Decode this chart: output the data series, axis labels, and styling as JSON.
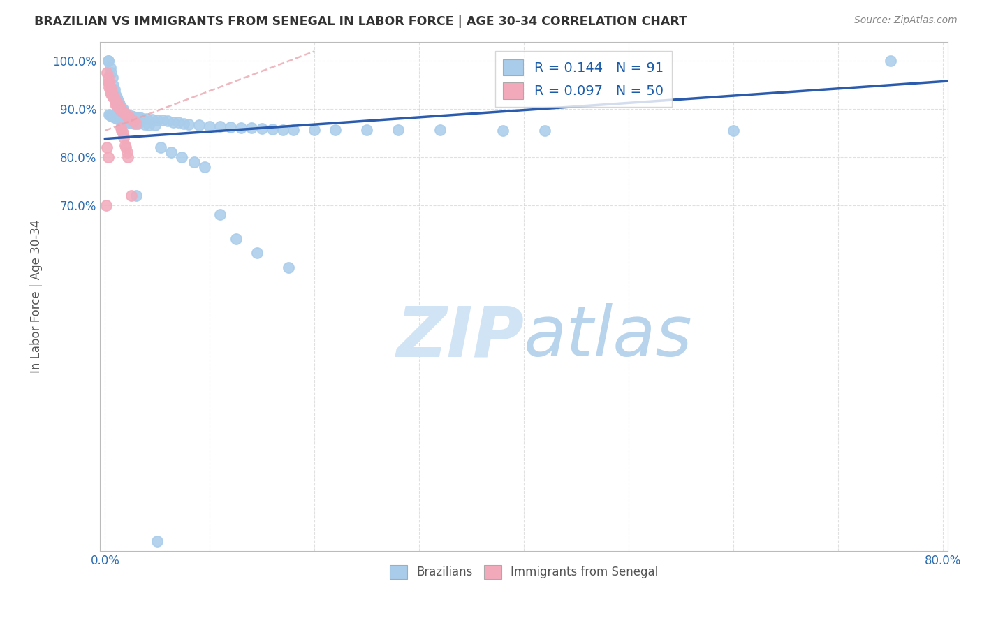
{
  "title": "BRAZILIAN VS IMMIGRANTS FROM SENEGAL IN LABOR FORCE | AGE 30-34 CORRELATION CHART",
  "source": "Source: ZipAtlas.com",
  "ylabel": "In Labor Force | Age 30-34",
  "xlim": [
    -0.005,
    0.805
  ],
  "ylim": [
    -0.02,
    1.04
  ],
  "yticks": [
    0.7,
    0.8,
    0.9,
    1.0
  ],
  "ytick_labels": [
    "70.0%",
    "80.0%",
    "90.0%",
    "100.0%"
  ],
  "xticks": [
    0.0,
    0.1,
    0.2,
    0.3,
    0.4,
    0.5,
    0.6,
    0.7,
    0.8
  ],
  "xtick_labels": [
    "0.0%",
    "",
    "",
    "",
    "",
    "",
    "",
    "",
    "80.0%"
  ],
  "blue_R": 0.144,
  "blue_N": 91,
  "pink_R": 0.097,
  "pink_N": 50,
  "blue_color": "#A8CCEA",
  "pink_color": "#F2AABB",
  "trendline_blue_color": "#2B5BAD",
  "trendline_pink_color": "#E8A0AA",
  "grid_color": "#CCCCCC",
  "title_color": "#333333",
  "axis_label_color": "#555555",
  "legend_text_color": "#1A5CA8",
  "watermark_color": "#D0E8F8",
  "background_color": "#FFFFFF",
  "blue_trendline_x": [
    0.0,
    0.805
  ],
  "blue_trendline_y": [
    0.838,
    0.958
  ],
  "pink_trendline_x": [
    0.0,
    0.2
  ],
  "pink_trendline_y": [
    0.855,
    1.02
  ],
  "blue_x": [
    0.003,
    0.003,
    0.005,
    0.006,
    0.007,
    0.008,
    0.009,
    0.01,
    0.011,
    0.012,
    0.013,
    0.014,
    0.015,
    0.016,
    0.017,
    0.018,
    0.019,
    0.02,
    0.021,
    0.022,
    0.023,
    0.025,
    0.027,
    0.03,
    0.033,
    0.036,
    0.04,
    0.045,
    0.05,
    0.055,
    0.06,
    0.065,
    0.07,
    0.075,
    0.08,
    0.09,
    0.1,
    0.11,
    0.12,
    0.13,
    0.14,
    0.15,
    0.16,
    0.17,
    0.18,
    0.2,
    0.22,
    0.25,
    0.28,
    0.32,
    0.38,
    0.42,
    0.6,
    0.75,
    0.004,
    0.005,
    0.006,
    0.007,
    0.008,
    0.009,
    0.01,
    0.011,
    0.012,
    0.013,
    0.014,
    0.015,
    0.016,
    0.017,
    0.018,
    0.019,
    0.02,
    0.021,
    0.022,
    0.023,
    0.025,
    0.028,
    0.032,
    0.038,
    0.042,
    0.048,
    0.053,
    0.063,
    0.073,
    0.085,
    0.095,
    0.11,
    0.125,
    0.145,
    0.175,
    0.03,
    0.05
  ],
  "blue_y": [
    1.0,
    1.0,
    0.985,
    0.975,
    0.965,
    0.95,
    0.94,
    0.93,
    0.925,
    0.92,
    0.915,
    0.91,
    0.905,
    0.9,
    0.9,
    0.895,
    0.89,
    0.89,
    0.888,
    0.887,
    0.886,
    0.885,
    0.884,
    0.883,
    0.882,
    0.88,
    0.879,
    0.878,
    0.877,
    0.876,
    0.875,
    0.873,
    0.872,
    0.87,
    0.868,
    0.866,
    0.864,
    0.863,
    0.862,
    0.861,
    0.86,
    0.859,
    0.858,
    0.857,
    0.856,
    0.856,
    0.856,
    0.856,
    0.856,
    0.856,
    0.855,
    0.855,
    0.855,
    1.0,
    0.888,
    0.887,
    0.886,
    0.885,
    0.884,
    0.883,
    0.882,
    0.881,
    0.88,
    0.879,
    0.878,
    0.877,
    0.876,
    0.876,
    0.875,
    0.875,
    0.874,
    0.874,
    0.873,
    0.872,
    0.871,
    0.87,
    0.869,
    0.868,
    0.867,
    0.866,
    0.82,
    0.81,
    0.8,
    0.79,
    0.78,
    0.68,
    0.63,
    0.6,
    0.57,
    0.72,
    0.0
  ],
  "pink_x": [
    0.002,
    0.003,
    0.004,
    0.005,
    0.006,
    0.007,
    0.008,
    0.009,
    0.01,
    0.011,
    0.012,
    0.013,
    0.014,
    0.015,
    0.016,
    0.017,
    0.018,
    0.019,
    0.02,
    0.021,
    0.022,
    0.023,
    0.024,
    0.025,
    0.027,
    0.03,
    0.003,
    0.004,
    0.005,
    0.006,
    0.007,
    0.008,
    0.009,
    0.01,
    0.011,
    0.012,
    0.013,
    0.014,
    0.015,
    0.016,
    0.017,
    0.018,
    0.019,
    0.02,
    0.021,
    0.022,
    0.002,
    0.003,
    0.001,
    0.025
  ],
  "pink_y": [
    0.975,
    0.965,
    0.955,
    0.945,
    0.94,
    0.93,
    0.925,
    0.92,
    0.91,
    0.908,
    0.906,
    0.904,
    0.9,
    0.898,
    0.896,
    0.894,
    0.892,
    0.89,
    0.888,
    0.886,
    0.884,
    0.882,
    0.88,
    0.878,
    0.875,
    0.87,
    0.955,
    0.945,
    0.935,
    0.93,
    0.928,
    0.924,
    0.922,
    0.918,
    0.915,
    0.912,
    0.908,
    0.905,
    0.86,
    0.855,
    0.85,
    0.84,
    0.825,
    0.82,
    0.81,
    0.8,
    0.82,
    0.8,
    0.7,
    0.72
  ]
}
